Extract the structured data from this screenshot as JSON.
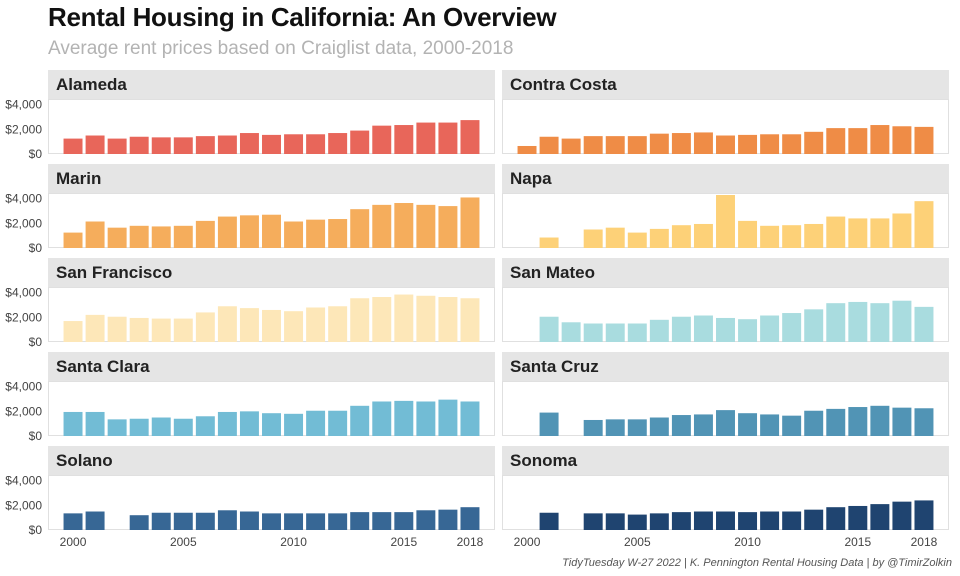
{
  "header": {
    "title": "Rental Housing in California: An Overview",
    "subtitle": "Average rent prices based on Craiglist data, 2000-2018",
    "caption": "TidyTuesday W-27 2022 | K. Pennington Rental Housing Data | by @TimirZolkin"
  },
  "chart_data": {
    "type": "bar",
    "layout": "facet-grid",
    "facet_columns": 2,
    "x": [
      2000,
      2001,
      2002,
      2003,
      2004,
      2005,
      2006,
      2007,
      2008,
      2009,
      2010,
      2011,
      2012,
      2013,
      2014,
      2015,
      2016,
      2017,
      2018
    ],
    "x_ticks": [
      2000,
      2005,
      2010,
      2015,
      2018
    ],
    "x_tick_labels": [
      "2000",
      "2005",
      "2010",
      "2015",
      "2018"
    ],
    "ylim": [
      0,
      4300
    ],
    "y_ticks": [
      0,
      2000,
      4000
    ],
    "y_tick_labels": [
      "$0",
      "$2,000",
      "$4,000"
    ],
    "xlabel": "",
    "ylabel": "",
    "legend": "none",
    "grid": false,
    "series": [
      {
        "name": "Alameda",
        "color": "#e8665a",
        "values": [
          1250,
          1500,
          1250,
          1400,
          1350,
          1350,
          1450,
          1500,
          1700,
          1550,
          1600,
          1600,
          1700,
          1900,
          2300,
          2350,
          2550,
          2550,
          2750
        ]
      },
      {
        "name": "Contra Costa",
        "color": "#ef8c46",
        "values": [
          650,
          1400,
          1250,
          1450,
          1450,
          1450,
          1650,
          1700,
          1750,
          1500,
          1550,
          1600,
          1600,
          1800,
          2100,
          2100,
          2350,
          2250,
          2200
        ]
      },
      {
        "name": "Marin",
        "color": "#f5ad5c",
        "values": [
          1250,
          2150,
          1650,
          1800,
          1750,
          1800,
          2200,
          2550,
          2650,
          2700,
          2150,
          2300,
          2350,
          3150,
          3500,
          3650,
          3500,
          3400,
          4100
        ]
      },
      {
        "name": "Napa",
        "color": "#fdd178",
        "values": [
          null,
          850,
          null,
          1500,
          1650,
          1250,
          1550,
          1850,
          1950,
          4300,
          2200,
          1800,
          1850,
          1950,
          2550,
          2400,
          2400,
          2800,
          3800
        ]
      },
      {
        "name": "San Francisco",
        "color": "#fde7b8",
        "values": [
          1700,
          2200,
          2050,
          1950,
          1900,
          1900,
          2400,
          2900,
          2750,
          2600,
          2500,
          2800,
          2900,
          3550,
          3650,
          3850,
          3750,
          3650,
          3550
        ]
      },
      {
        "name": "San Mateo",
        "color": "#a9dcdf",
        "values": [
          null,
          2050,
          1600,
          1500,
          1500,
          1500,
          1800,
          2050,
          2150,
          1950,
          1850,
          2150,
          2350,
          2650,
          3150,
          3250,
          3150,
          3350,
          2850
        ]
      },
      {
        "name": "Santa Clara",
        "color": "#72bcd5",
        "values": [
          1950,
          1950,
          1350,
          1400,
          1500,
          1400,
          1600,
          1950,
          2000,
          1850,
          1800,
          2050,
          2050,
          2450,
          2800,
          2850,
          2800,
          2950,
          2800
        ]
      },
      {
        "name": "Santa Cruz",
        "color": "#5194b5",
        "values": [
          null,
          1900,
          null,
          1300,
          1350,
          1350,
          1500,
          1700,
          1750,
          2100,
          1850,
          1750,
          1650,
          2050,
          2200,
          2350,
          2450,
          2300,
          2250
        ]
      },
      {
        "name": "Solano",
        "color": "#376795",
        "values": [
          1350,
          1500,
          null,
          1200,
          1400,
          1400,
          1400,
          1600,
          1500,
          1350,
          1350,
          1350,
          1350,
          1450,
          1450,
          1450,
          1600,
          1650,
          1850
        ]
      },
      {
        "name": "Sonoma",
        "color": "#1f4470",
        "values": [
          null,
          1400,
          null,
          1350,
          1350,
          1250,
          1350,
          1450,
          1500,
          1500,
          1450,
          1500,
          1500,
          1650,
          1850,
          1950,
          2100,
          2300,
          2400
        ]
      }
    ]
  }
}
